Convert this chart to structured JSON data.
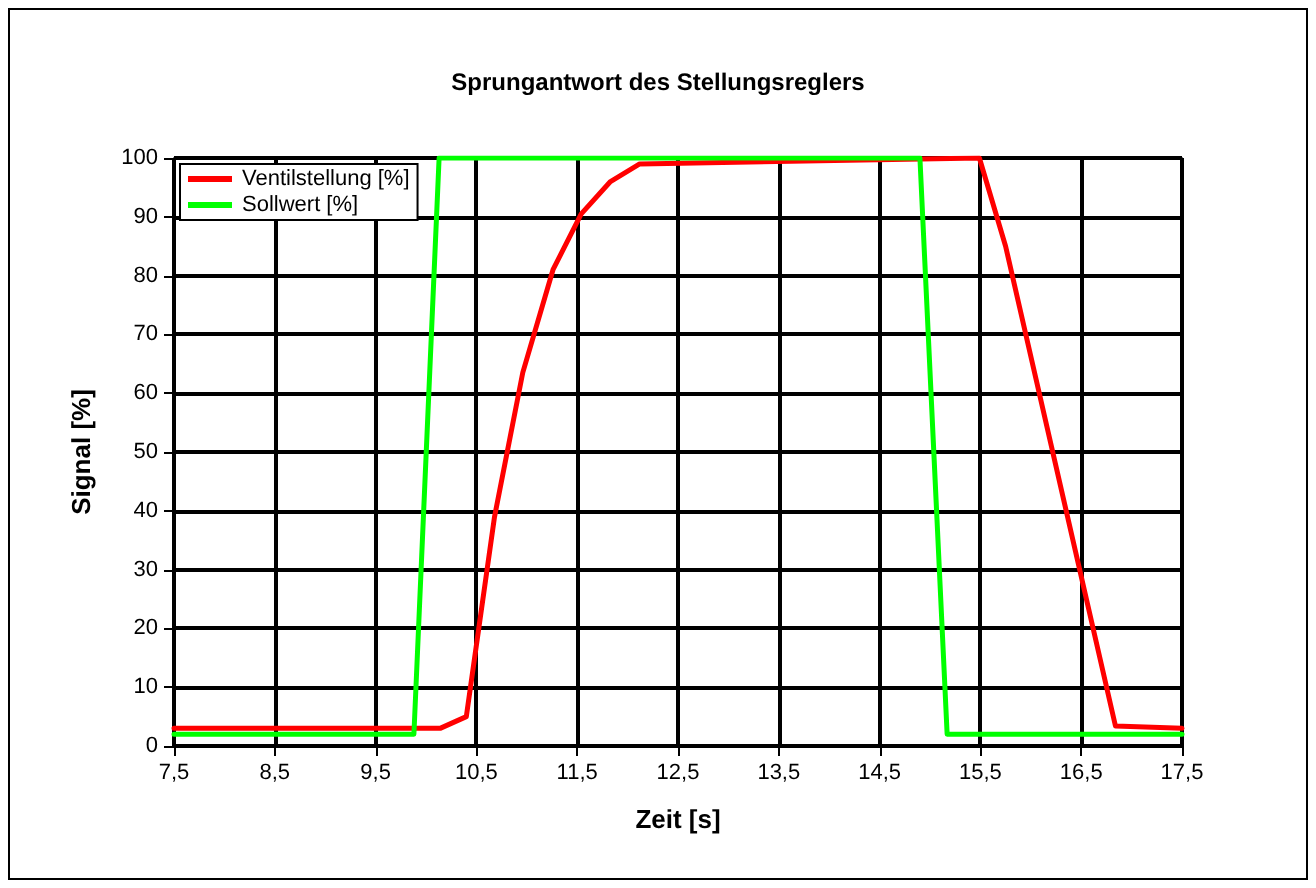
{
  "chart_data": {
    "type": "line",
    "title": "Sprungantwort des Stellungsreglers",
    "xlabel": "Zeit [s]",
    "ylabel": "Signal [%]",
    "xlim": [
      7.5,
      17.5
    ],
    "xticks": [
      {
        "value": 7.5,
        "label": "7,5"
      },
      {
        "value": 8.5,
        "label": "8,5"
      },
      {
        "value": 9.5,
        "label": "9,5"
      },
      {
        "value": 10.5,
        "label": "10,5"
      },
      {
        "value": 11.5,
        "label": "11,5"
      },
      {
        "value": 12.5,
        "label": "12,5"
      },
      {
        "value": 13.5,
        "label": "13,5"
      },
      {
        "value": 14.5,
        "label": "14,5"
      },
      {
        "value": 15.5,
        "label": "15,5"
      },
      {
        "value": 16.5,
        "label": "16,5"
      },
      {
        "value": 17.5,
        "label": "17,5"
      }
    ],
    "ylim": [
      0,
      100
    ],
    "yticks": [
      0,
      10,
      20,
      30,
      40,
      50,
      60,
      70,
      80,
      90,
      100
    ],
    "grid": true,
    "legend": "top left",
    "marker": "none",
    "line_style": "solid",
    "series": [
      {
        "name": "Ventilstellung [%]",
        "color": "#ff0000",
        "x": [
          7.5,
          10.14,
          10.4,
          10.68,
          10.96,
          11.26,
          11.54,
          11.83,
          12.12,
          15.49,
          15.75,
          16.84,
          17.5
        ],
        "values": [
          3,
          3,
          5,
          39,
          63.5,
          81,
          90.5,
          96,
          99,
          100,
          85,
          3.4,
          3
        ]
      },
      {
        "name": "Sollwert [%]",
        "color": "#00ff00",
        "x": [
          7.5,
          9.88,
          10.13,
          14.9,
          15.17,
          17.5
        ],
        "values": [
          2,
          2,
          100,
          100,
          2,
          2
        ]
      }
    ]
  }
}
